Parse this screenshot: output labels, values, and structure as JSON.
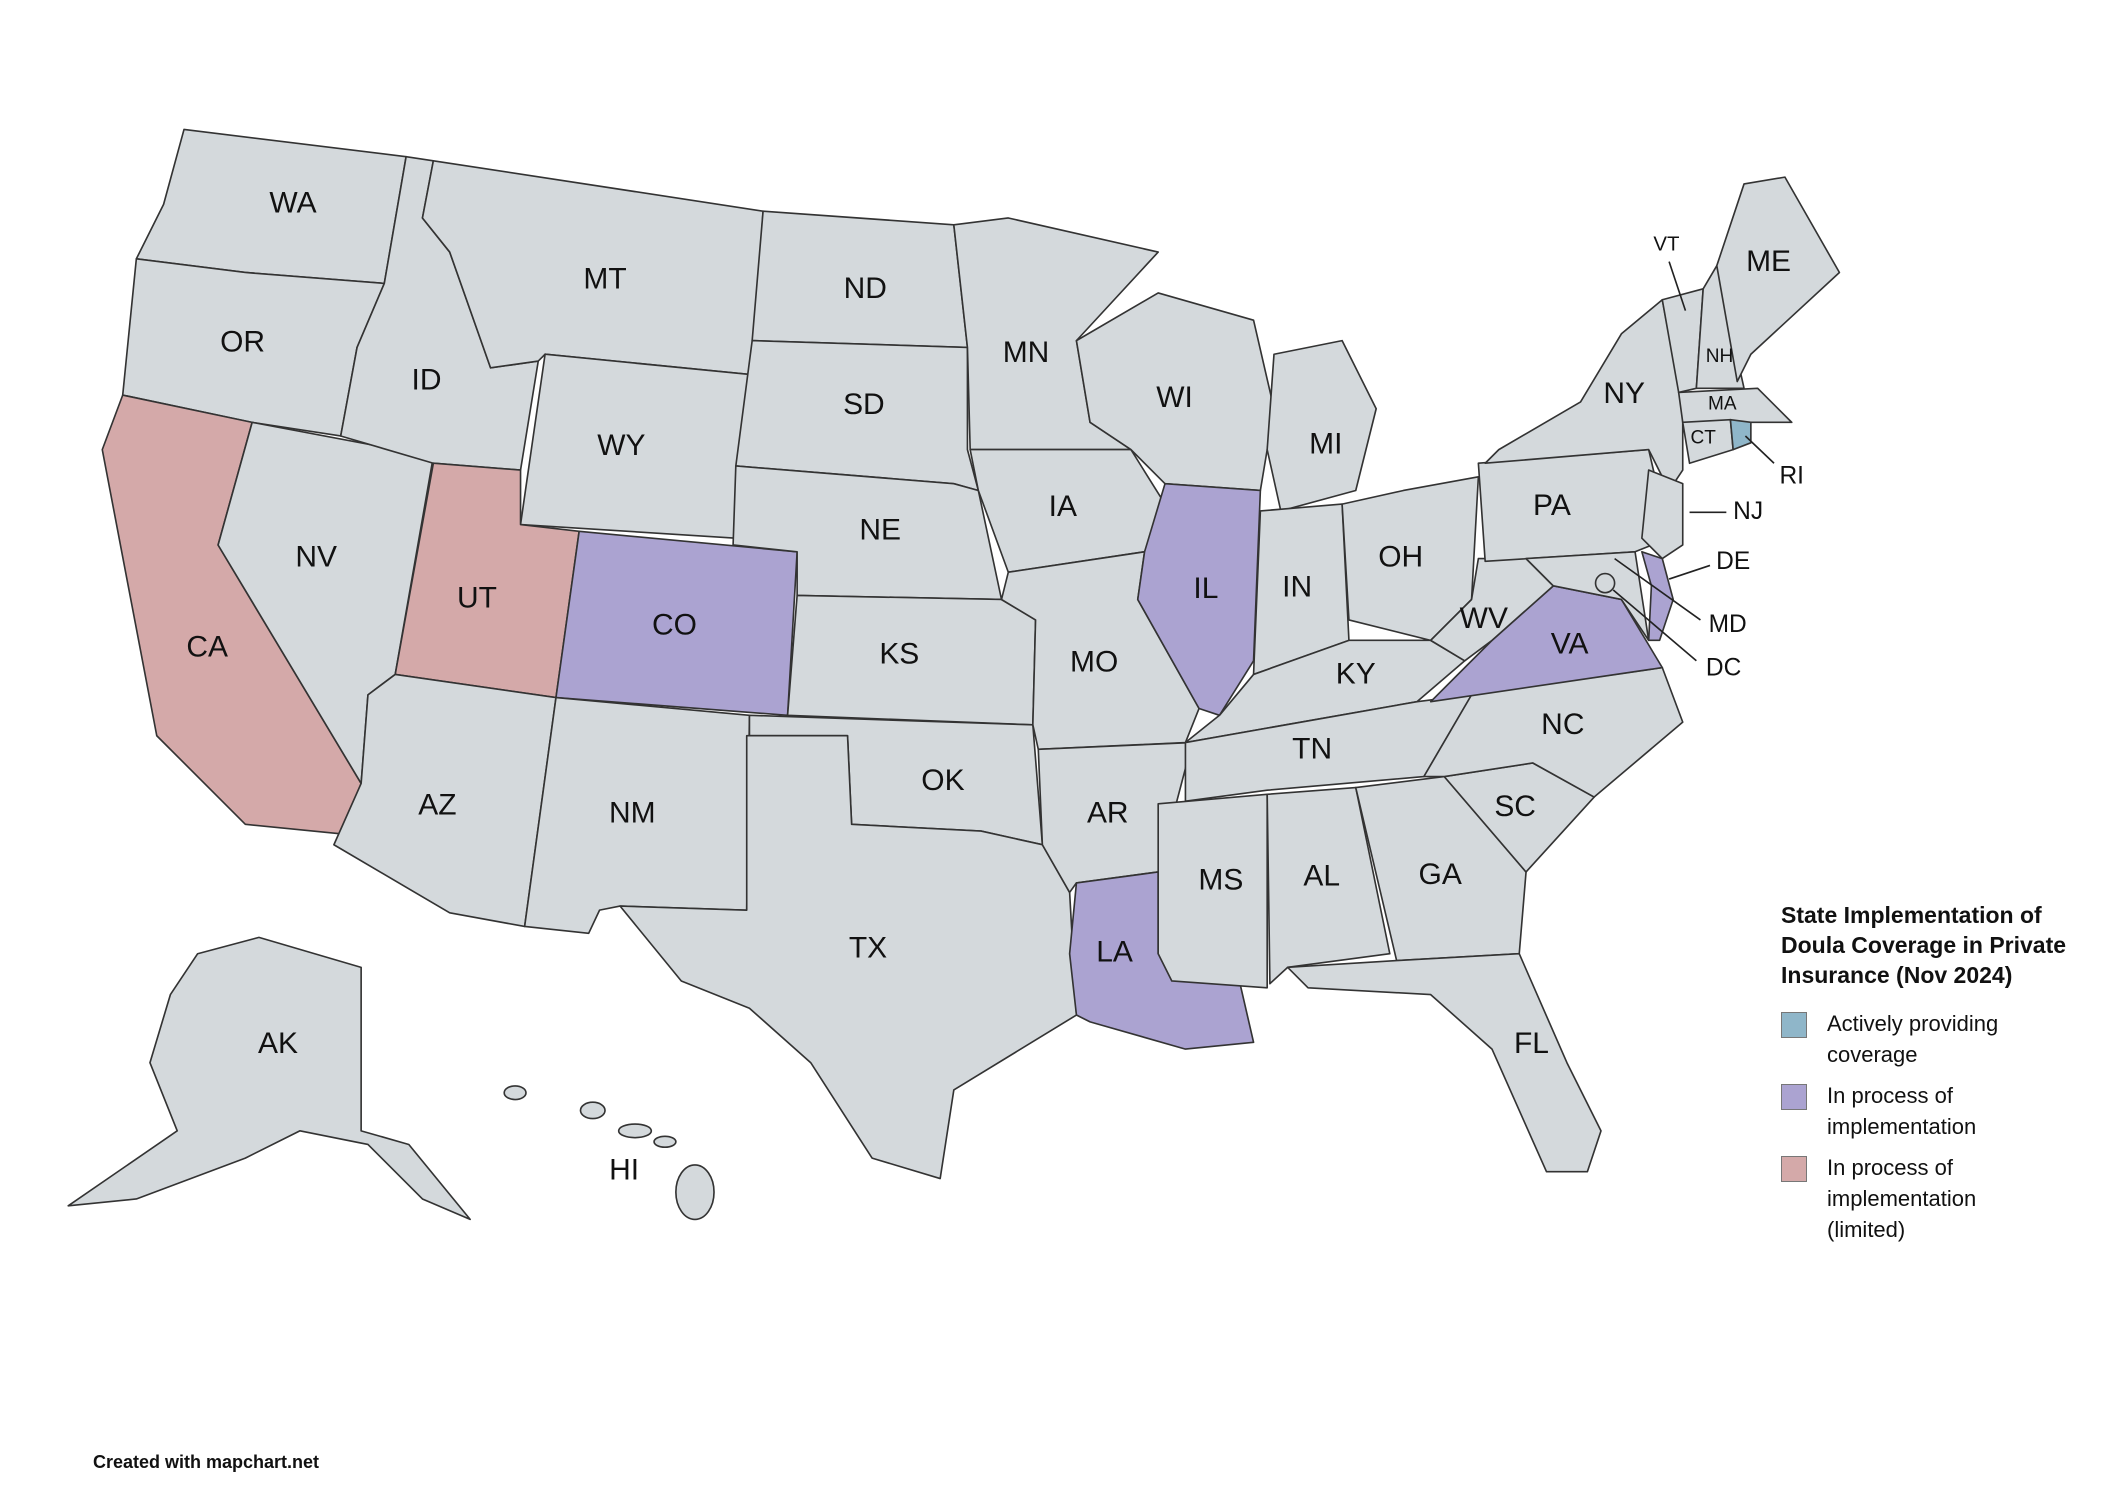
{
  "map": {
    "states": [
      {
        "label": "WA",
        "color": "#d4d9dc"
      },
      {
        "label": "OR",
        "color": "#d4d9dc"
      },
      {
        "label": "CA",
        "color": "#d4a9a9"
      },
      {
        "label": "NV",
        "color": "#d4d9dc"
      },
      {
        "label": "ID",
        "color": "#d4d9dc"
      },
      {
        "label": "MT",
        "color": "#d4d9dc"
      },
      {
        "label": "WY",
        "color": "#d4d9dc"
      },
      {
        "label": "UT",
        "color": "#d4a9a9"
      },
      {
        "label": "CO",
        "color": "#aba3d1"
      },
      {
        "label": "AZ",
        "color": "#d4d9dc"
      },
      {
        "label": "NM",
        "color": "#d4d9dc"
      },
      {
        "label": "ND",
        "color": "#d4d9dc"
      },
      {
        "label": "SD",
        "color": "#d4d9dc"
      },
      {
        "label": "NE",
        "color": "#d4d9dc"
      },
      {
        "label": "KS",
        "color": "#d4d9dc"
      },
      {
        "label": "OK",
        "color": "#d4d9dc"
      },
      {
        "label": "TX",
        "color": "#d4d9dc"
      },
      {
        "label": "MN",
        "color": "#d4d9dc"
      },
      {
        "label": "IA",
        "color": "#d4d9dc"
      },
      {
        "label": "MO",
        "color": "#d4d9dc"
      },
      {
        "label": "AR",
        "color": "#d4d9dc"
      },
      {
        "label": "LA",
        "color": "#aba3d1"
      },
      {
        "label": "WI",
        "color": "#d4d9dc"
      },
      {
        "label": "IL",
        "color": "#aba3d1"
      },
      {
        "label": "MI",
        "color": "#d4d9dc"
      },
      {
        "label": "IN",
        "color": "#d4d9dc"
      },
      {
        "label": "OH",
        "color": "#d4d9dc"
      },
      {
        "label": "KY",
        "color": "#d4d9dc"
      },
      {
        "label": "TN",
        "color": "#d4d9dc"
      },
      {
        "label": "MS",
        "color": "#d4d9dc"
      },
      {
        "label": "AL",
        "color": "#d4d9dc"
      },
      {
        "label": "GA",
        "color": "#d4d9dc"
      },
      {
        "label": "FL",
        "color": "#d4d9dc"
      },
      {
        "label": "SC",
        "color": "#d4d9dc"
      },
      {
        "label": "NC",
        "color": "#d4d9dc"
      },
      {
        "label": "VA",
        "color": "#aba3d1"
      },
      {
        "label": "WV",
        "color": "#d4d9dc"
      },
      {
        "label": "PA",
        "color": "#d4d9dc"
      },
      {
        "label": "NY",
        "color": "#d4d9dc"
      },
      {
        "label": "NJ",
        "color": "#d4d9dc"
      },
      {
        "label": "DE",
        "color": "#aba3d1"
      },
      {
        "label": "MD",
        "color": "#d4d9dc"
      },
      {
        "label": "DC",
        "color": "#d4d9dc"
      },
      {
        "label": "VT",
        "color": "#d4d9dc"
      },
      {
        "label": "NH",
        "color": "#d4d9dc"
      },
      {
        "label": "ME",
        "color": "#d4d9dc"
      },
      {
        "label": "MA",
        "color": "#d4d9dc"
      },
      {
        "label": "CT",
        "color": "#d4d9dc"
      },
      {
        "label": "RI",
        "color": "#8fb6c9"
      },
      {
        "label": "AK",
        "color": "#d4d9dc"
      },
      {
        "label": "HI",
        "color": "#d4d9dc"
      }
    ]
  },
  "legend": {
    "title": "State Implementation of Doula Coverage in Private Insurance (Nov 2024)",
    "items": [
      {
        "label": "Actively providing coverage",
        "color": "#8fb6c9"
      },
      {
        "label": "In process of implementation",
        "color": "#aba3d1"
      },
      {
        "label": "In process of implementation (limited)",
        "color": "#d4a9a9"
      }
    ]
  },
  "footer": "Created with mapchart.net"
}
